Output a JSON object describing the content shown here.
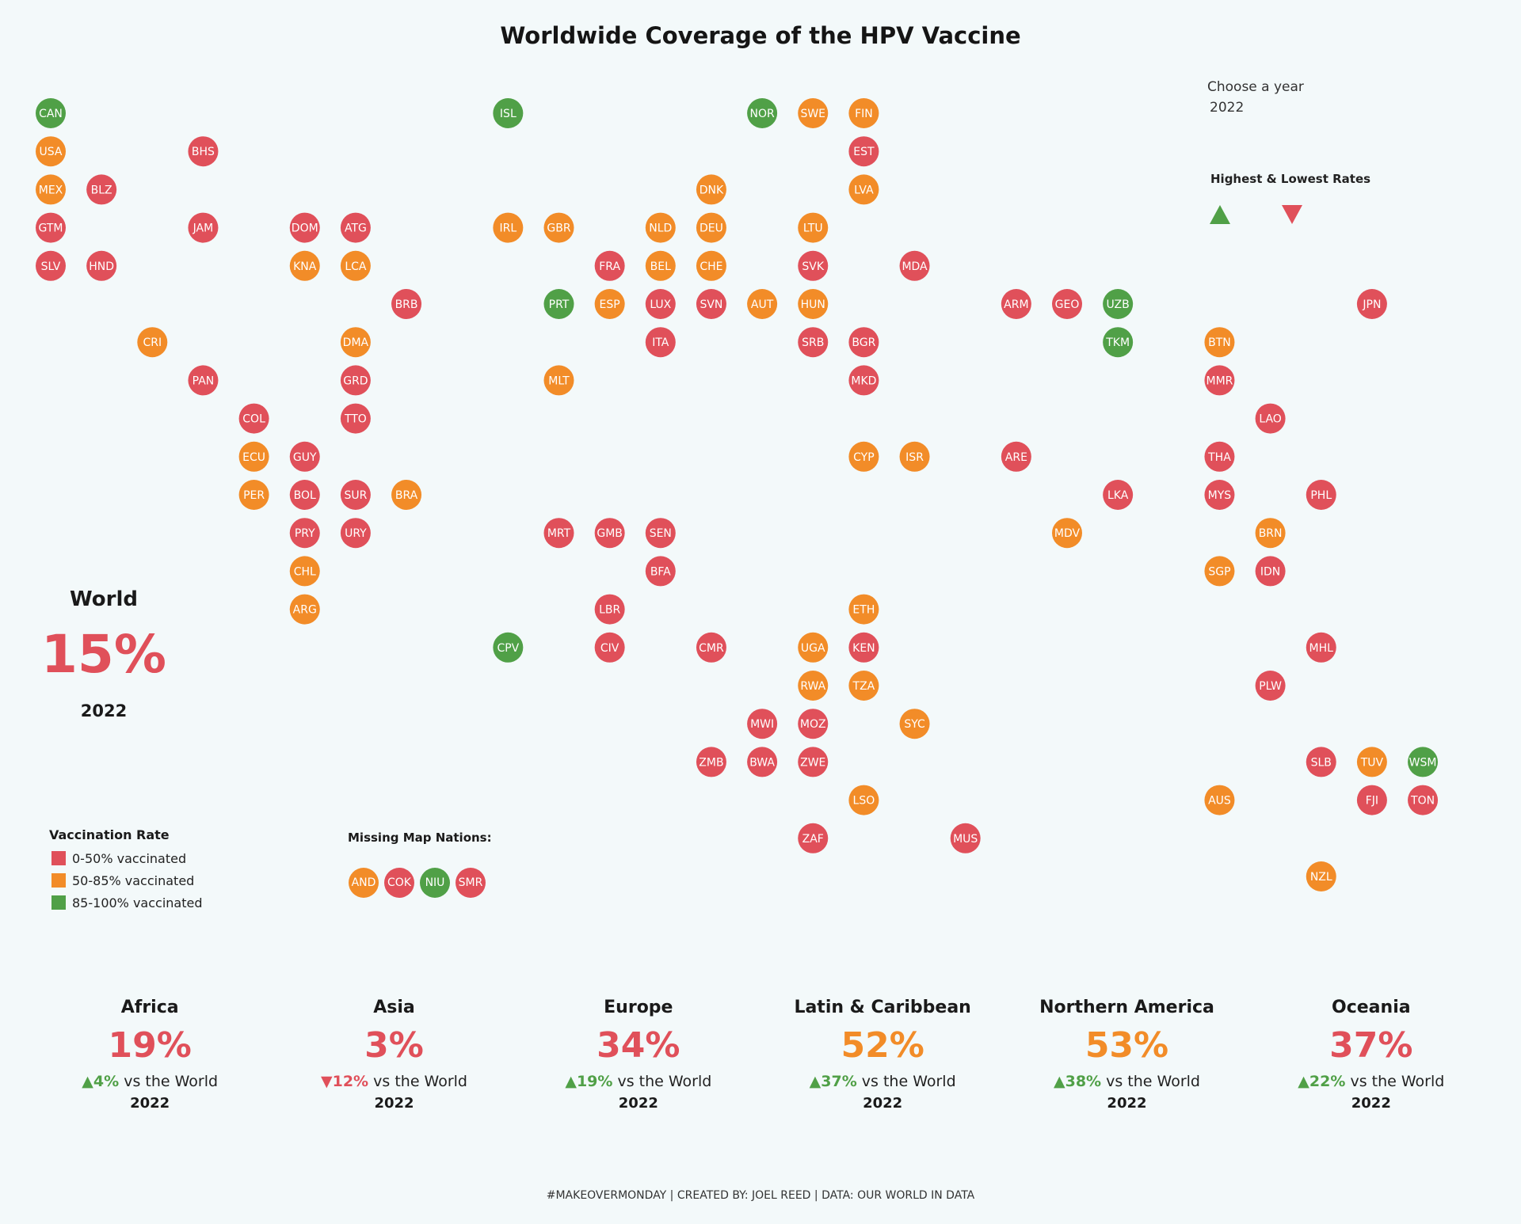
{
  "title": "Worldwide Coverage of the HPV Vaccine",
  "year_selector": {
    "label": "Choose a year",
    "value": "2022"
  },
  "highlight": {
    "title": "Highest & Lowest Rates",
    "up_icon": "triangle-up-icon",
    "down_icon": "triangle-down-icon"
  },
  "world": {
    "label": "World",
    "value": "15%",
    "year": "2022"
  },
  "colors": {
    "low": "#e0505a",
    "mid": "#f28c28",
    "high": "#50a047",
    "up": "#50a047",
    "down": "#e0505a"
  },
  "legend": {
    "title": "Vaccination Rate",
    "items": [
      {
        "label": "0-50% vaccinated",
        "cls": "low"
      },
      {
        "label": "50-85% vaccinated",
        "cls": "mid"
      },
      {
        "label": "85-100% vaccinated",
        "cls": "high"
      }
    ]
  },
  "missing": {
    "title": "Missing Map Nations:",
    "nations": [
      {
        "code": "AND",
        "cls": "mid"
      },
      {
        "code": "COK",
        "cls": "low"
      },
      {
        "code": "NIU",
        "cls": "high"
      },
      {
        "code": "SMR",
        "cls": "low"
      }
    ]
  },
  "regions": [
    {
      "name": "Africa",
      "pct": "19%",
      "cls": "low",
      "dir": "up",
      "change": "4%",
      "vs": "vs the World",
      "year": "2022"
    },
    {
      "name": "Asia",
      "pct": "3%",
      "cls": "low",
      "dir": "down",
      "change": "12%",
      "vs": "vs the World",
      "year": "2022"
    },
    {
      "name": "Europe",
      "pct": "34%",
      "cls": "low",
      "dir": "up",
      "change": "19%",
      "vs": "vs the World",
      "year": "2022"
    },
    {
      "name": "Latin & Caribbean",
      "pct": "52%",
      "cls": "mid",
      "dir": "up",
      "change": "37%",
      "vs": "vs the World",
      "year": "2022"
    },
    {
      "name": "Northern America",
      "pct": "53%",
      "cls": "mid",
      "dir": "up",
      "change": "38%",
      "vs": "vs the World",
      "year": "2022"
    },
    {
      "name": "Oceania",
      "pct": "37%",
      "cls": "low",
      "dir": "up",
      "change": "22%",
      "vs": "vs the World",
      "year": "2022"
    }
  ],
  "footer": "#MAKEOVERMONDAY | CREATED BY: JOEL REED | DATA: OUR WORLD IN DATA",
  "chart_data": {
    "type": "tile-map",
    "title": "Worldwide Coverage of the HPV Vaccine",
    "year": "2022",
    "legend": [
      "0-50% vaccinated",
      "50-85% vaccinated",
      "85-100% vaccinated"
    ],
    "tiles": [
      {
        "code": "CAN",
        "col": 0,
        "row": 0,
        "cls": "high"
      },
      {
        "code": "ISL",
        "col": 9,
        "row": 0,
        "cls": "high"
      },
      {
        "code": "NOR",
        "col": 14,
        "row": 0,
        "cls": "high"
      },
      {
        "code": "SWE",
        "col": 15,
        "row": 0,
        "cls": "mid"
      },
      {
        "code": "FIN",
        "col": 16,
        "row": 0,
        "cls": "mid"
      },
      {
        "code": "USA",
        "col": 0,
        "row": 1,
        "cls": "mid"
      },
      {
        "code": "BHS",
        "col": 3,
        "row": 1,
        "cls": "low"
      },
      {
        "code": "EST",
        "col": 16,
        "row": 1,
        "cls": "low"
      },
      {
        "code": "MEX",
        "col": 0,
        "row": 2,
        "cls": "mid"
      },
      {
        "code": "BLZ",
        "col": 1,
        "row": 2,
        "cls": "low"
      },
      {
        "code": "DNK",
        "col": 13,
        "row": 2,
        "cls": "mid"
      },
      {
        "code": "LVA",
        "col": 16,
        "row": 2,
        "cls": "mid"
      },
      {
        "code": "GTM",
        "col": 0,
        "row": 3,
        "cls": "low"
      },
      {
        "code": "JAM",
        "col": 3,
        "row": 3,
        "cls": "low"
      },
      {
        "code": "DOM",
        "col": 5,
        "row": 3,
        "cls": "low"
      },
      {
        "code": "ATG",
        "col": 6,
        "row": 3,
        "cls": "low"
      },
      {
        "code": "IRL",
        "col": 9,
        "row": 3,
        "cls": "mid"
      },
      {
        "code": "GBR",
        "col": 10,
        "row": 3,
        "cls": "mid"
      },
      {
        "code": "NLD",
        "col": 12,
        "row": 3,
        "cls": "mid"
      },
      {
        "code": "DEU",
        "col": 13,
        "row": 3,
        "cls": "mid"
      },
      {
        "code": "LTU",
        "col": 15,
        "row": 3,
        "cls": "mid"
      },
      {
        "code": "SLV",
        "col": 0,
        "row": 4,
        "cls": "low"
      },
      {
        "code": "HND",
        "col": 1,
        "row": 4,
        "cls": "low"
      },
      {
        "code": "KNA",
        "col": 5,
        "row": 4,
        "cls": "mid"
      },
      {
        "code": "LCA",
        "col": 6,
        "row": 4,
        "cls": "mid"
      },
      {
        "code": "FRA",
        "col": 11,
        "row": 4,
        "cls": "low"
      },
      {
        "code": "BEL",
        "col": 12,
        "row": 4,
        "cls": "mid"
      },
      {
        "code": "CHE",
        "col": 13,
        "row": 4,
        "cls": "mid"
      },
      {
        "code": "SVK",
        "col": 15,
        "row": 4,
        "cls": "low"
      },
      {
        "code": "MDA",
        "col": 17,
        "row": 4,
        "cls": "low"
      },
      {
        "code": "BRB",
        "col": 7,
        "row": 5,
        "cls": "low"
      },
      {
        "code": "PRT",
        "col": 10,
        "row": 5,
        "cls": "high"
      },
      {
        "code": "ESP",
        "col": 11,
        "row": 5,
        "cls": "mid"
      },
      {
        "code": "LUX",
        "col": 12,
        "row": 5,
        "cls": "low"
      },
      {
        "code": "SVN",
        "col": 13,
        "row": 5,
        "cls": "low"
      },
      {
        "code": "AUT",
        "col": 14,
        "row": 5,
        "cls": "mid"
      },
      {
        "code": "HUN",
        "col": 15,
        "row": 5,
        "cls": "mid"
      },
      {
        "code": "ARM",
        "col": 19,
        "row": 5,
        "cls": "low"
      },
      {
        "code": "GEO",
        "col": 20,
        "row": 5,
        "cls": "low"
      },
      {
        "code": "UZB",
        "col": 21,
        "row": 5,
        "cls": "high"
      },
      {
        "code": "JPN",
        "col": 26,
        "row": 5,
        "cls": "low"
      },
      {
        "code": "CRI",
        "col": 2,
        "row": 6,
        "cls": "mid"
      },
      {
        "code": "DMA",
        "col": 6,
        "row": 6,
        "cls": "mid"
      },
      {
        "code": "ITA",
        "col": 12,
        "row": 6,
        "cls": "low"
      },
      {
        "code": "SRB",
        "col": 15,
        "row": 6,
        "cls": "low"
      },
      {
        "code": "BGR",
        "col": 16,
        "row": 6,
        "cls": "low"
      },
      {
        "code": "TKM",
        "col": 21,
        "row": 6,
        "cls": "high"
      },
      {
        "code": "BTN",
        "col": 23,
        "row": 6,
        "cls": "mid"
      },
      {
        "code": "PAN",
        "col": 3,
        "row": 7,
        "cls": "low"
      },
      {
        "code": "GRD",
        "col": 6,
        "row": 7,
        "cls": "low"
      },
      {
        "code": "MLT",
        "col": 10,
        "row": 7,
        "cls": "mid"
      },
      {
        "code": "MKD",
        "col": 16,
        "row": 7,
        "cls": "low"
      },
      {
        "code": "MMR",
        "col": 23,
        "row": 7,
        "cls": "low"
      },
      {
        "code": "COL",
        "col": 4,
        "row": 8,
        "cls": "low"
      },
      {
        "code": "TTO",
        "col": 6,
        "row": 8,
        "cls": "low"
      },
      {
        "code": "LAO",
        "col": 24,
        "row": 8,
        "cls": "low"
      },
      {
        "code": "ECU",
        "col": 4,
        "row": 9,
        "cls": "mid"
      },
      {
        "code": "GUY",
        "col": 5,
        "row": 9,
        "cls": "low"
      },
      {
        "code": "CYP",
        "col": 16,
        "row": 9,
        "cls": "mid"
      },
      {
        "code": "ISR",
        "col": 17,
        "row": 9,
        "cls": "mid"
      },
      {
        "code": "ARE",
        "col": 19,
        "row": 9,
        "cls": "low"
      },
      {
        "code": "THA",
        "col": 23,
        "row": 9,
        "cls": "low"
      },
      {
        "code": "PER",
        "col": 4,
        "row": 10,
        "cls": "mid"
      },
      {
        "code": "BOL",
        "col": 5,
        "row": 10,
        "cls": "low"
      },
      {
        "code": "SUR",
        "col": 6,
        "row": 10,
        "cls": "low"
      },
      {
        "code": "BRA",
        "col": 7,
        "row": 10,
        "cls": "mid"
      },
      {
        "code": "LKA",
        "col": 21,
        "row": 10,
        "cls": "low"
      },
      {
        "code": "MYS",
        "col": 23,
        "row": 10,
        "cls": "low"
      },
      {
        "code": "PHL",
        "col": 25,
        "row": 10,
        "cls": "low"
      },
      {
        "code": "PRY",
        "col": 5,
        "row": 11,
        "cls": "low"
      },
      {
        "code": "URY",
        "col": 6,
        "row": 11,
        "cls": "low"
      },
      {
        "code": "MRT",
        "col": 10,
        "row": 11,
        "cls": "low"
      },
      {
        "code": "GMB",
        "col": 11,
        "row": 11,
        "cls": "low"
      },
      {
        "code": "SEN",
        "col": 12,
        "row": 11,
        "cls": "low"
      },
      {
        "code": "MDV",
        "col": 20,
        "row": 11,
        "cls": "mid"
      },
      {
        "code": "BRN",
        "col": 24,
        "row": 11,
        "cls": "mid"
      },
      {
        "code": "CHL",
        "col": 5,
        "row": 12,
        "cls": "mid"
      },
      {
        "code": "BFA",
        "col": 12,
        "row": 12,
        "cls": "low"
      },
      {
        "code": "SGP",
        "col": 23,
        "row": 12,
        "cls": "mid"
      },
      {
        "code": "IDN",
        "col": 24,
        "row": 12,
        "cls": "low"
      },
      {
        "code": "ARG",
        "col": 5,
        "row": 13,
        "cls": "mid"
      },
      {
        "code": "LBR",
        "col": 11,
        "row": 13,
        "cls": "low"
      },
      {
        "code": "ETH",
        "col": 16,
        "row": 13,
        "cls": "mid"
      },
      {
        "code": "CPV",
        "col": 9,
        "row": 14,
        "cls": "high"
      },
      {
        "code": "CIV",
        "col": 11,
        "row": 14,
        "cls": "low"
      },
      {
        "code": "CMR",
        "col": 13,
        "row": 14,
        "cls": "low"
      },
      {
        "code": "UGA",
        "col": 15,
        "row": 14,
        "cls": "mid"
      },
      {
        "code": "KEN",
        "col": 16,
        "row": 14,
        "cls": "low"
      },
      {
        "code": "MHL",
        "col": 25,
        "row": 14,
        "cls": "low"
      },
      {
        "code": "RWA",
        "col": 15,
        "row": 15,
        "cls": "mid"
      },
      {
        "code": "TZA",
        "col": 16,
        "row": 15,
        "cls": "mid"
      },
      {
        "code": "PLW",
        "col": 24,
        "row": 15,
        "cls": "low"
      },
      {
        "code": "MWI",
        "col": 14,
        "row": 16,
        "cls": "low"
      },
      {
        "code": "MOZ",
        "col": 15,
        "row": 16,
        "cls": "low"
      },
      {
        "code": "SYC",
        "col": 17,
        "row": 16,
        "cls": "mid"
      },
      {
        "code": "ZMB",
        "col": 13,
        "row": 17,
        "cls": "low"
      },
      {
        "code": "BWA",
        "col": 14,
        "row": 17,
        "cls": "low"
      },
      {
        "code": "ZWE",
        "col": 15,
        "row": 17,
        "cls": "low"
      },
      {
        "code": "SLB",
        "col": 25,
        "row": 17,
        "cls": "low"
      },
      {
        "code": "TUV",
        "col": 26,
        "row": 17,
        "cls": "mid"
      },
      {
        "code": "WSM",
        "col": 27,
        "row": 17,
        "cls": "high"
      },
      {
        "code": "LSO",
        "col": 16,
        "row": 18,
        "cls": "mid"
      },
      {
        "code": "AUS",
        "col": 23,
        "row": 18,
        "cls": "mid"
      },
      {
        "code": "FJI",
        "col": 26,
        "row": 18,
        "cls": "low"
      },
      {
        "code": "TON",
        "col": 27,
        "row": 18,
        "cls": "low"
      },
      {
        "code": "ZAF",
        "col": 15,
        "row": 19,
        "cls": "low"
      },
      {
        "code": "MUS",
        "col": 18,
        "row": 19,
        "cls": "low"
      },
      {
        "code": "NZL",
        "col": 25,
        "row": 20,
        "cls": "mid"
      }
    ]
  }
}
